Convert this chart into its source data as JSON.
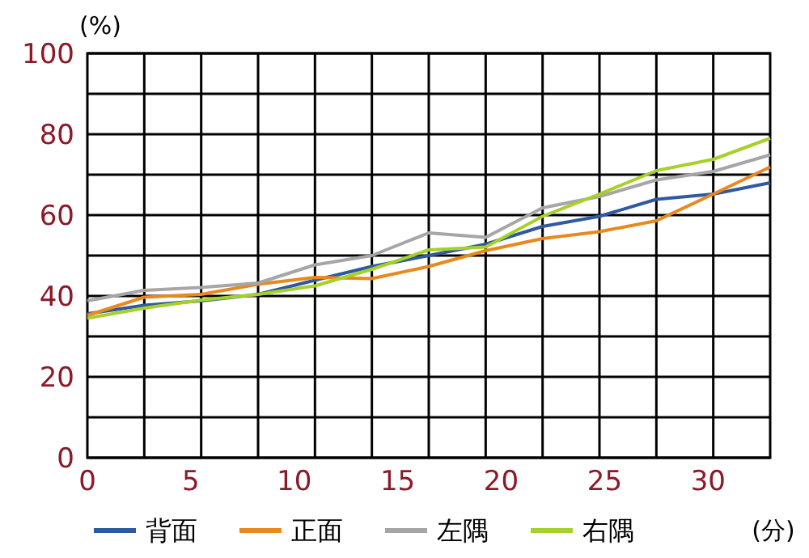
{
  "chart_data": {
    "type": "line",
    "ylabel": "(%)",
    "xlabel": "(分)",
    "x": [
      0,
      2.75,
      5.5,
      8.25,
      11,
      13.75,
      16.5,
      19.25,
      22,
      24.75,
      27.5,
      30.25,
      33
    ],
    "xlim": [
      0,
      33
    ],
    "xticks": [
      0,
      5,
      10,
      15,
      20,
      25,
      30,
      {
        "value": 2.75,
        "label": null
      },
      {
        "value": 5.5,
        "label": null
      },
      {
        "value": 8.25,
        "label": null
      },
      {
        "value": 11,
        "label": null
      },
      {
        "value": 13.75,
        "label": null
      },
      {
        "value": 16.5,
        "label": null
      },
      {
        "value": 19.25,
        "label": null
      },
      {
        "value": 22,
        "label": null
      },
      {
        "value": 24.75,
        "label": null
      },
      {
        "value": 27.5,
        "label": null
      },
      {
        "value": 30.25,
        "label": null
      }
    ],
    "ylim": [
      0,
      100
    ],
    "yticks": [
      0,
      20,
      40,
      60,
      80,
      100,
      {
        "value": 10,
        "label": null
      },
      {
        "value": 30,
        "label": null
      },
      {
        "value": 50,
        "label": null
      },
      {
        "value": 70,
        "label": null
      },
      {
        "value": 90,
        "label": null
      }
    ],
    "grid": true,
    "legend": "bottom",
    "marker": "none",
    "line_style": "solid",
    "series": [
      {
        "name": "背面",
        "color": "#2f5aa0",
        "values": [
          35.6,
          37.7,
          38.8,
          40.4,
          43.9,
          47.3,
          50,
          52.8,
          57.2,
          59.7,
          63.9,
          65.2,
          68
        ]
      },
      {
        "name": "正面",
        "color": "#e8891e",
        "values": [
          35.2,
          39.7,
          40.4,
          42.9,
          44.6,
          44.3,
          47.3,
          51.2,
          54.2,
          55.9,
          58.6,
          65.2,
          71.9
        ]
      },
      {
        "name": "左隅",
        "color": "#a6a6a6",
        "values": [
          38.8,
          41.4,
          42.1,
          43.2,
          47.7,
          50,
          55.6,
          54.5,
          61.8,
          64.6,
          68.7,
          70.8,
          74.9
        ]
      },
      {
        "name": "右隅",
        "color": "#a6d12a",
        "values": [
          34.5,
          37,
          39,
          40.4,
          42.5,
          46.6,
          51.4,
          52.1,
          59.7,
          65.2,
          71,
          73.8,
          79
        ]
      }
    ]
  }
}
